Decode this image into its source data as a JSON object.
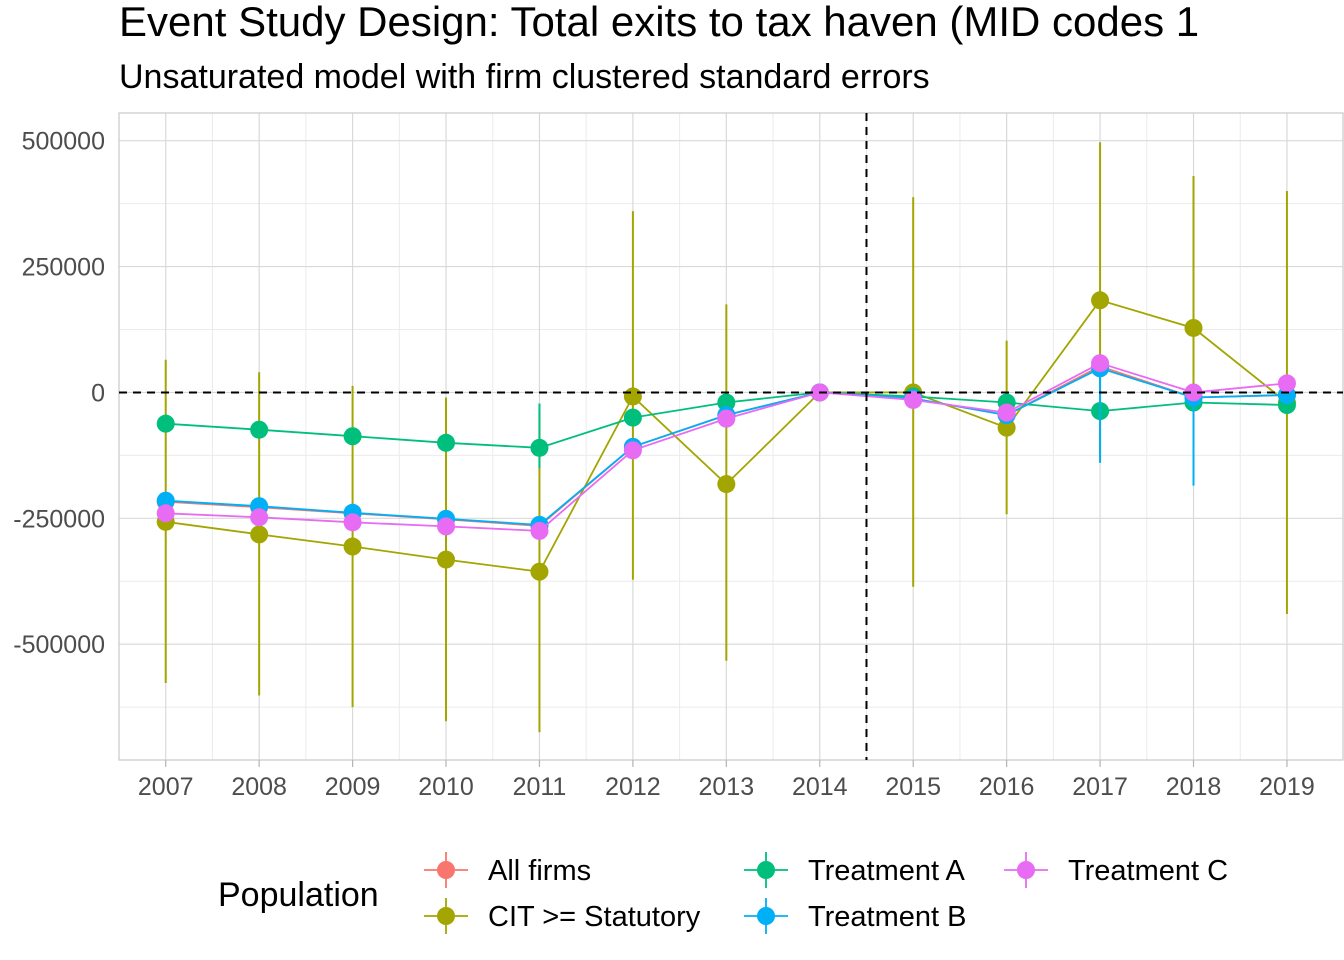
{
  "chart_data": {
    "type": "line",
    "title": "Event Study Design: Total exits to tax haven (MID codes 1",
    "subtitle": "Unsaturated model with firm clustered standard errors",
    "xlabel": "",
    "ylabel": "",
    "x": [
      2007,
      2008,
      2009,
      2010,
      2011,
      2012,
      2013,
      2014,
      2015,
      2016,
      2017,
      2018,
      2019
    ],
    "x_tick_labels": [
      "2007",
      "2008",
      "2009",
      "2010",
      "2011",
      "2012",
      "2013",
      "2014",
      "2015",
      "2016",
      "2017",
      "2018",
      "2019"
    ],
    "xlim": [
      2006.5,
      2019.6
    ],
    "y_ticks": [
      500000,
      250000,
      0,
      -250000,
      -500000
    ],
    "y_tick_labels": [
      "500000",
      "250000",
      "0",
      "-250000",
      "-500000"
    ],
    "ylim": [
      -730000,
      555000
    ],
    "vline_x": 2014.5,
    "hline_y": 0,
    "grid": true,
    "legend": {
      "title": "Population",
      "position": "bottom",
      "entries": [
        "All firms",
        "CIT >= Statutory",
        "Treatment A",
        "Treatment B",
        "Treatment C"
      ]
    },
    "series": [
      {
        "name": "All firms",
        "color": "#F8766D",
        "values": [
          -217000,
          -228000,
          -240000,
          -252000,
          -265000,
          -108000,
          -45000,
          0,
          -12000,
          -45000,
          52000,
          -10000,
          -5000
        ],
        "lower": [
          null,
          null,
          null,
          null,
          null,
          null,
          null,
          null,
          null,
          null,
          null,
          null,
          null
        ],
        "upper": [
          null,
          null,
          null,
          null,
          null,
          null,
          null,
          null,
          null,
          null,
          null,
          null,
          null
        ]
      },
      {
        "name": "CIT >= Statutory",
        "color": "#A3A500",
        "values": [
          -257000,
          -282000,
          -306000,
          -332000,
          -356000,
          -8000,
          -182000,
          0,
          0,
          -70000,
          183000,
          128000,
          -20000
        ],
        "lower": [
          -577000,
          -602000,
          -625000,
          -653000,
          -675000,
          -372000,
          -533000,
          0,
          -386000,
          -242000,
          -133000,
          -180000,
          -440000
        ],
        "upper": [
          65000,
          40000,
          13000,
          -10000,
          -37000,
          360000,
          175000,
          0,
          388000,
          103000,
          497000,
          430000,
          400000
        ]
      },
      {
        "name": "Treatment A",
        "color": "#00BF7D",
        "values": [
          -62000,
          -74000,
          -87000,
          -100000,
          -110000,
          -50000,
          -20000,
          0,
          -8000,
          -20000,
          -37000,
          -20000,
          -25000
        ],
        "lower": [
          null,
          null,
          null,
          null,
          -150000,
          null,
          null,
          null,
          null,
          null,
          null,
          null,
          null
        ],
        "upper": [
          null,
          null,
          null,
          null,
          -22000,
          null,
          null,
          null,
          null,
          null,
          null,
          null,
          null
        ]
      },
      {
        "name": "Treatment B",
        "color": "#00B0F6",
        "values": [
          -215000,
          -226000,
          -239000,
          -251000,
          -263000,
          -108000,
          -45000,
          0,
          -12000,
          -45000,
          48000,
          -10000,
          -5000
        ],
        "lower": [
          null,
          null,
          null,
          null,
          null,
          null,
          null,
          null,
          null,
          null,
          -140000,
          -185000,
          null
        ],
        "upper": [
          null,
          null,
          null,
          null,
          null,
          null,
          null,
          null,
          null,
          null,
          null,
          null,
          null
        ]
      },
      {
        "name": "Treatment C",
        "color": "#E76BF3",
        "values": [
          -240000,
          -248000,
          -258000,
          -266000,
          -275000,
          -115000,
          -52000,
          0,
          -15000,
          -40000,
          58000,
          0,
          18000
        ],
        "lower": [
          null,
          null,
          null,
          null,
          null,
          null,
          null,
          null,
          null,
          null,
          null,
          null,
          null
        ],
        "upper": [
          null,
          null,
          null,
          null,
          null,
          null,
          null,
          null,
          null,
          null,
          null,
          null,
          null
        ]
      }
    ]
  }
}
